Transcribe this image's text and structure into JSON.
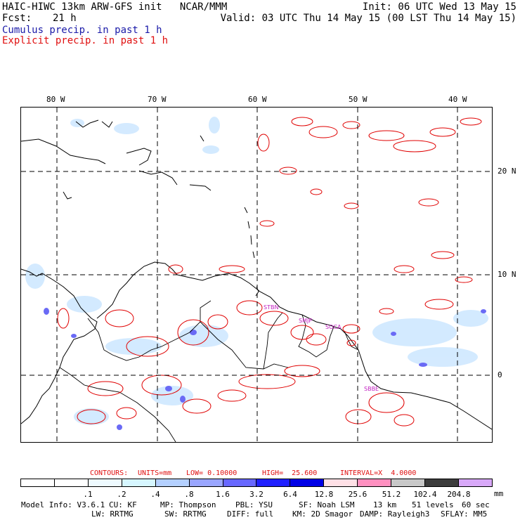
{
  "header": {
    "line1_left": "HAIC-HIWC 13km ARW-GFS init   NCAR/MMM",
    "line1_right": "Init: 06 UTC Wed 13 May 15",
    "fcst_label": "Fcst:",
    "fcst_value": "21 h",
    "valid": "Valid: 03 UTC Thu 14 May 15 (00 LST Thu 14 May 15)",
    "legend_cumulus": "Cumulus precip. in past 1 h",
    "legend_explicit": "Explicit precip. in past 1 h"
  },
  "map": {
    "lon_labels": [
      "80 W",
      "70 W",
      "60 W",
      "50 W",
      "40 W"
    ],
    "lat_labels": [
      "20 N",
      "10 N",
      "0"
    ],
    "stations": [
      "STBN",
      "SMJP",
      "SOCA",
      "SBBE"
    ]
  },
  "contours": {
    "label": "CONTOURS:",
    "units": "UNITS=mm",
    "low": "LOW= 0.10000",
    "high": "HIGH=  25.600",
    "interval": "INTERVAL=X  4.0000"
  },
  "colorbar": {
    "labels": [
      ".1",
      ".2",
      ".4",
      ".8",
      "1.6",
      "3.2",
      "6.4",
      "12.8",
      "25.6",
      "51.2",
      "102.4",
      "204.8"
    ],
    "unit": "mm",
    "colors": [
      "#ffffff",
      "#ffffff",
      "#eefaff",
      "#d6f6ff",
      "#b4d0ff",
      "#9aa6ff",
      "#6868ff",
      "#2020ff",
      "#0000e6",
      "#ffe0e6",
      "#ff90c0",
      "#c8c8c8",
      "#3c3c3c",
      "#d8a8f8"
    ]
  },
  "footer": {
    "line1": [
      "Model Info: V3.6.1",
      "CU: KF",
      "MP: Thompson",
      "PBL: YSU",
      "SF: Noah LSM",
      "13 km",
      "51 levels",
      "60 sec"
    ],
    "line2": [
      "LW: RRTMG",
      "SW: RRTMG",
      "DIFF: full",
      "KM: 2D Smagor",
      "DAMP: Rayleigh3",
      "SFLAY: MM5"
    ]
  }
}
